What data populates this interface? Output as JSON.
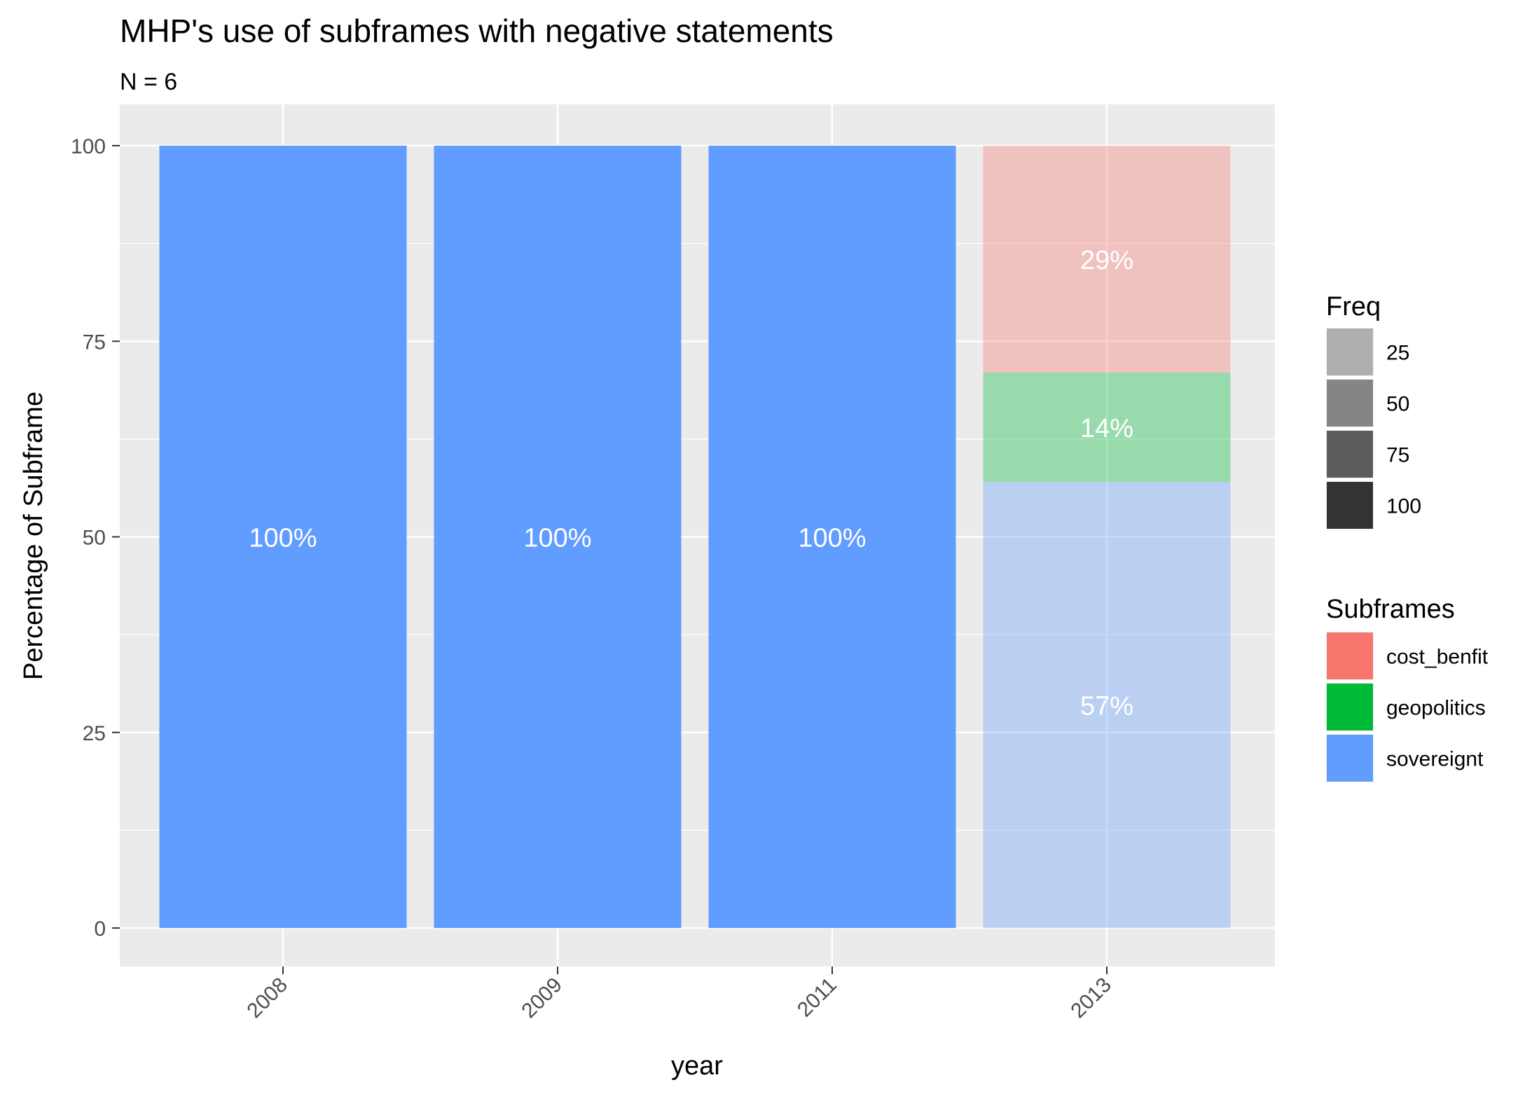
{
  "chart_data": {
    "type": "bar",
    "stacked": true,
    "title": "MHP's use of subframes with negative statements",
    "subtitle": "N = 6",
    "xlabel": "year",
    "ylabel": "Percentage of Subframe",
    "categories": [
      "2008",
      "2009",
      "2011",
      "2013"
    ],
    "ylim": [
      0,
      100
    ],
    "yticks": [
      "0",
      "25",
      "50",
      "75",
      "100"
    ],
    "grid": true,
    "series": [
      {
        "name": "sovereignt",
        "color": "#619CFF",
        "values": [
          100,
          100,
          100,
          57
        ],
        "labels": [
          "100%",
          "100%",
          "100%",
          "57%"
        ]
      },
      {
        "name": "geopolitics",
        "color": "#00BA38",
        "values": [
          0,
          0,
          0,
          14
        ],
        "labels": [
          "",
          "",
          "",
          "14%"
        ]
      },
      {
        "name": "cost_benfit",
        "color": "#F8766D",
        "values": [
          0,
          0,
          0,
          29
        ],
        "labels": [
          "",
          "",
          "",
          "29%"
        ]
      }
    ],
    "freq": [
      100,
      100,
      100,
      25
    ],
    "legend_position": "right",
    "legends": [
      {
        "title": "Freq",
        "type": "alpha",
        "entries": [
          "25",
          "50",
          "75",
          "100"
        ],
        "values": [
          25,
          50,
          75,
          100
        ]
      },
      {
        "title": "Subframes",
        "type": "fill",
        "entries": [
          "cost_benfit",
          "geopolitics",
          "sovereignt"
        ],
        "colors": [
          "#F8766D",
          "#00BA38",
          "#619CFF"
        ]
      }
    ]
  }
}
